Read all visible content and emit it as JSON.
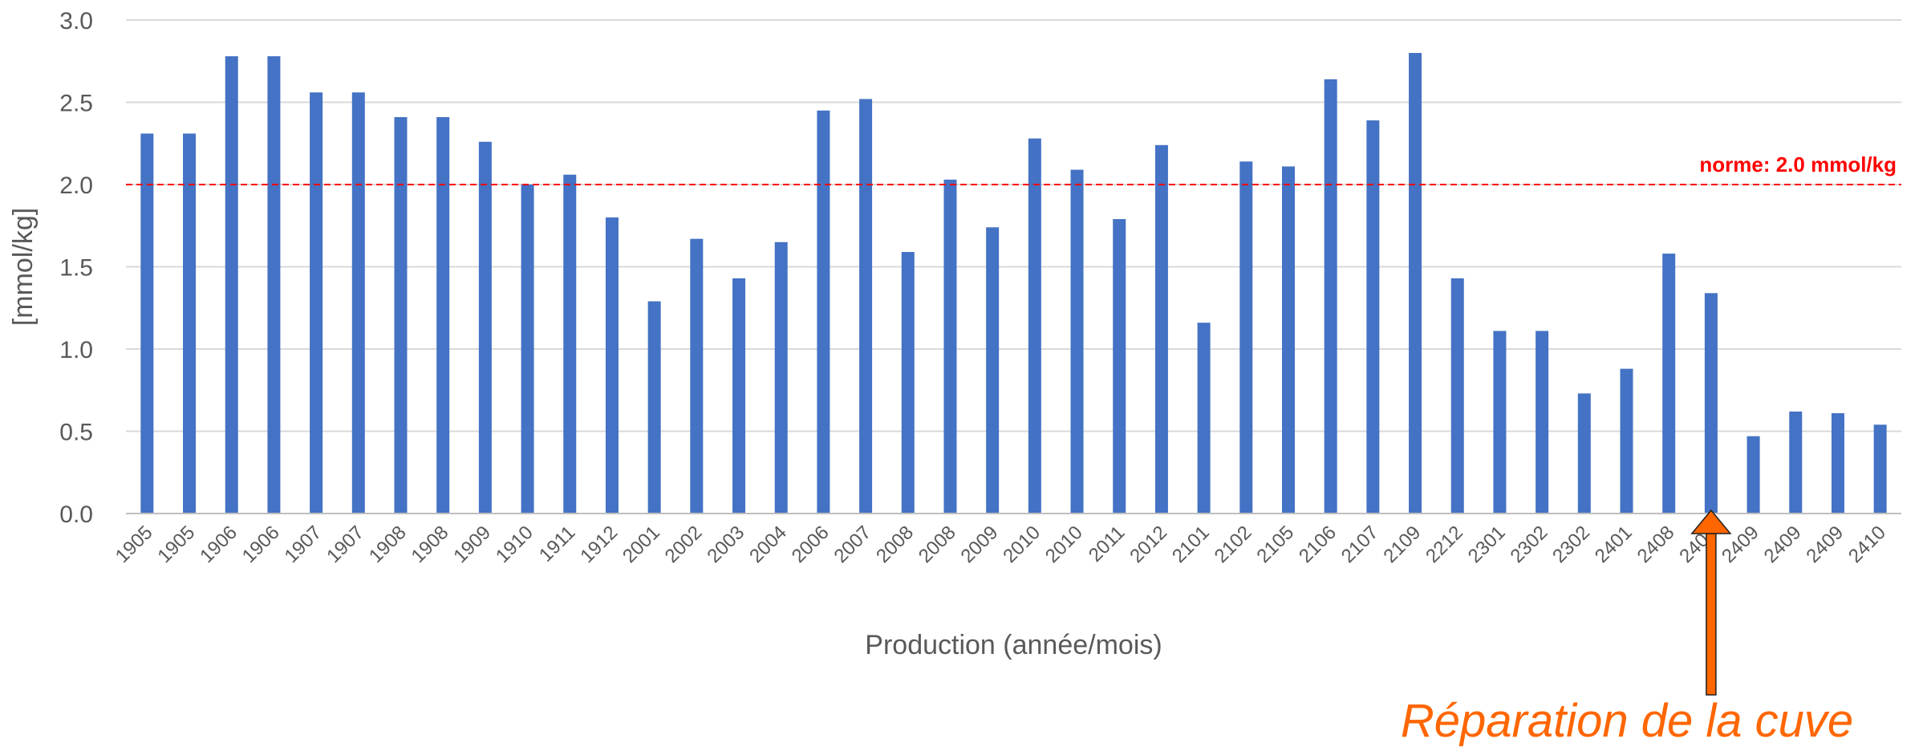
{
  "chart_data": {
    "type": "bar",
    "categories": [
      "1905",
      "1905",
      "1906",
      "1906",
      "1907",
      "1907",
      "1908",
      "1908",
      "1909",
      "1910",
      "1911",
      "1912",
      "2001",
      "2002",
      "2003",
      "2004",
      "2006",
      "2007",
      "2008",
      "2008",
      "2009",
      "2010",
      "2010",
      "2011",
      "2012",
      "2101",
      "2102",
      "2105",
      "2106",
      "2107",
      "2109",
      "2212",
      "2301",
      "2302",
      "2302",
      "2401",
      "2408",
      "2408",
      "2409",
      "2409",
      "2409",
      "2410"
    ],
    "values": [
      2.31,
      2.31,
      2.78,
      2.78,
      2.56,
      2.56,
      2.41,
      2.41,
      2.26,
      2.0,
      2.06,
      1.8,
      1.29,
      1.67,
      1.43,
      1.65,
      2.45,
      2.52,
      1.59,
      2.03,
      1.74,
      2.28,
      2.09,
      1.79,
      2.24,
      1.16,
      2.14,
      2.11,
      2.64,
      2.39,
      2.8,
      1.43,
      1.11,
      1.11,
      0.73,
      0.88,
      1.58,
      1.34,
      0.47,
      0.62,
      0.61,
      0.54
    ],
    "xlabel": "Production (année/mois)",
    "ylabel": "[mmol/kg]",
    "ylim": [
      0,
      3.0
    ],
    "yticks": [
      "0.0",
      "0.5",
      "1.0",
      "1.5",
      "2.0",
      "2.5",
      "3.0"
    ],
    "grid": true,
    "bar_color": "#4472C4",
    "reference_line": {
      "value": 2.0,
      "label": "norme: 2.0 mmol/kg",
      "color": "#FF0000",
      "style": "dashed"
    },
    "annotation": {
      "text": "Réparation de la cuve",
      "at_category_index": 38,
      "color": "#FF6600"
    }
  }
}
